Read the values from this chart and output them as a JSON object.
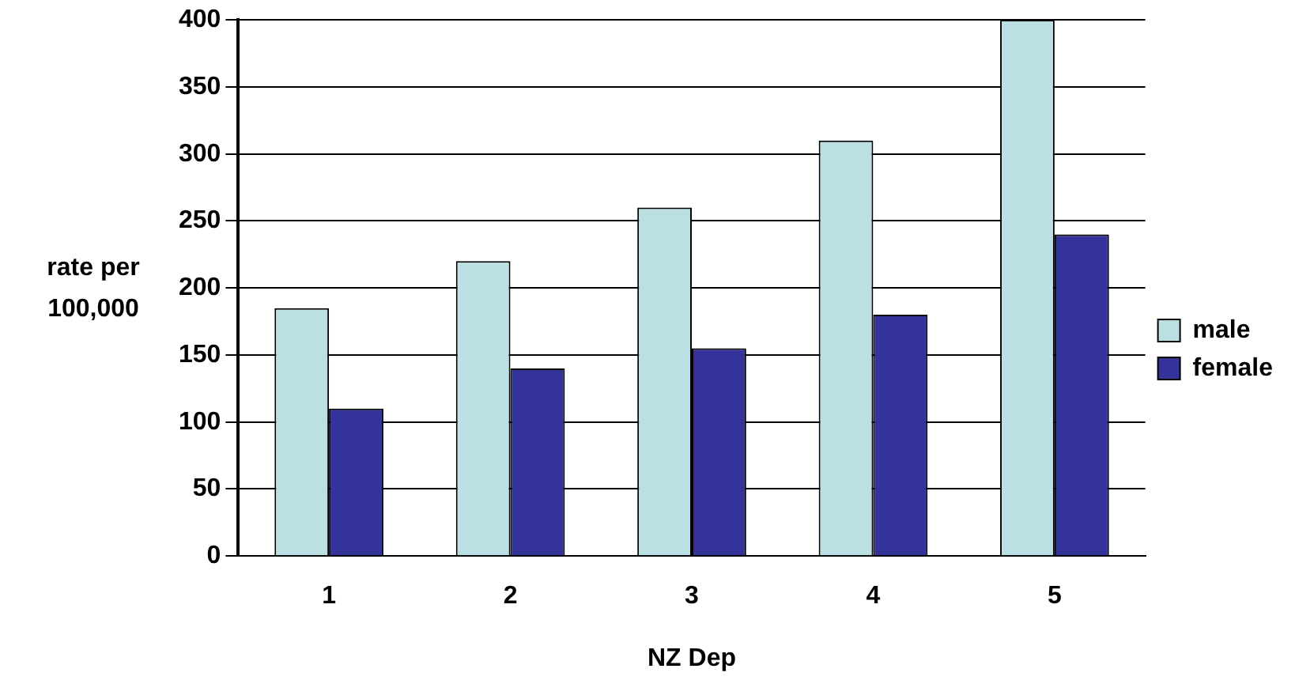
{
  "chart_data": {
    "type": "bar",
    "xlabel": "NZ Dep",
    "ylabel": "rate per 100,000",
    "categories": [
      "1",
      "2",
      "3",
      "4",
      "5"
    ],
    "series": [
      {
        "name": "male",
        "color": "#bbe0e3",
        "values": [
          185,
          220,
          260,
          310,
          400
        ]
      },
      {
        "name": "female",
        "color": "#333399",
        "values": [
          110,
          140,
          155,
          180,
          240
        ]
      }
    ],
    "ylim": [
      0,
      400
    ],
    "yticks": [
      0,
      50,
      100,
      150,
      200,
      250,
      300,
      350,
      400
    ],
    "grid": "y",
    "legend": "right"
  }
}
